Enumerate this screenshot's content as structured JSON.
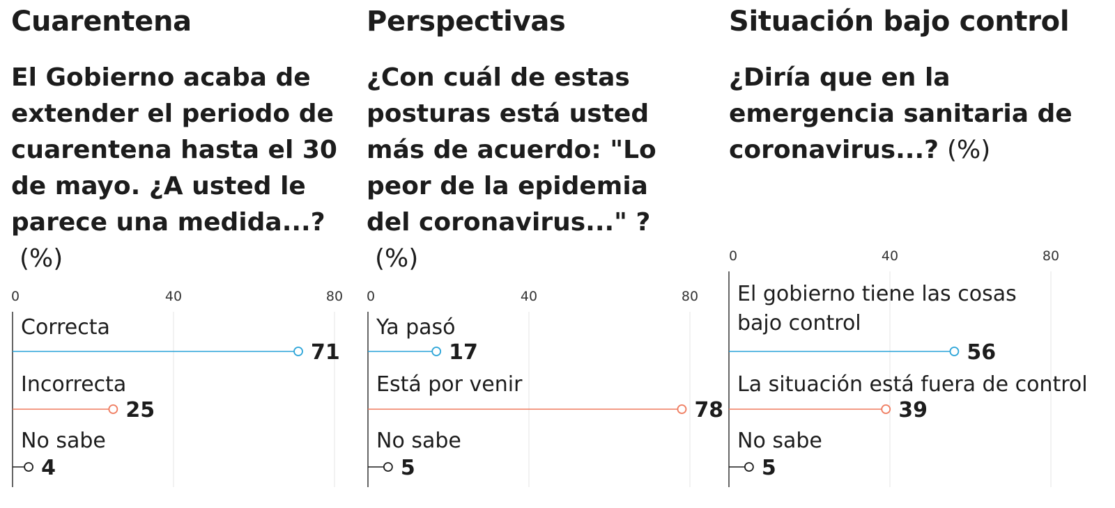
{
  "colors": {
    "first": "#2aa4d8",
    "second": "#ef7a5d",
    "neutral": "#1c1c1c"
  },
  "panels": [
    {
      "title": "Cuarentena",
      "question": "El Gobierno acaba de extender el periodo de cuarentena hasta el 30 de mayo. ¿A usted le parece una medida...?",
      "unit": "(%)"
    },
    {
      "title": "Perspectivas",
      "question": "¿Con cuál de estas posturas está usted más de acuerdo: \"Lo peor de la epidemia del coronavirus...\" ?",
      "unit": "(%)"
    },
    {
      "title": "Situación bajo control",
      "question": "¿Diría que en la emergencia sanitaria de coronavirus...?",
      "unit": "(%)"
    }
  ],
  "chart_data": [
    {
      "type": "dot-bar",
      "title": "Cuarentena",
      "xlim": [
        0,
        80
      ],
      "ticks": [
        0,
        40,
        80
      ],
      "categories": [
        "Correcta",
        "Incorrecta",
        "No sabe"
      ],
      "values": [
        71,
        25,
        4
      ],
      "grid": true
    },
    {
      "type": "dot-bar",
      "title": "Perspectivas",
      "xlim": [
        0,
        80
      ],
      "ticks": [
        0,
        40,
        80
      ],
      "categories": [
        "Ya pasó",
        "Está por venir",
        "No sabe"
      ],
      "values": [
        17,
        78,
        5
      ],
      "grid": true
    },
    {
      "type": "dot-bar",
      "title": "Situación bajo control",
      "xlim": [
        0,
        80
      ],
      "ticks": [
        0,
        40,
        80
      ],
      "categories": [
        "El gobierno tiene las cosas bajo control",
        "La situación está fuera de control",
        "No sabe"
      ],
      "values": [
        56,
        39,
        5
      ],
      "grid": true
    }
  ]
}
